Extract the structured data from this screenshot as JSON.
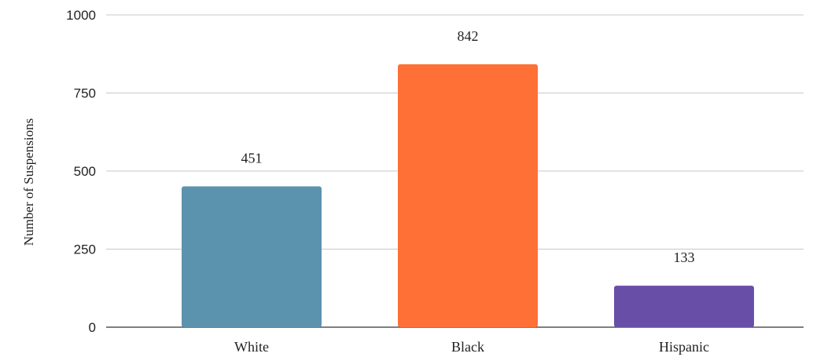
{
  "chart_data": {
    "type": "bar",
    "title": "",
    "xlabel": "",
    "ylabel": "Number of Suspensions",
    "categories": [
      "White",
      "Black",
      "Hispanic"
    ],
    "values": [
      451,
      842,
      133
    ],
    "data_labels": [
      "451",
      "842",
      "133"
    ],
    "colors": [
      "#5b93ae",
      "#ff7036",
      "#694ea8"
    ],
    "ylim": [
      0,
      1000
    ],
    "yticks": [
      0,
      250,
      500,
      750,
      1000
    ],
    "ytick_labels": [
      "0",
      "250",
      "500",
      "750",
      "1000"
    ],
    "grid": true,
    "legend": "none"
  }
}
